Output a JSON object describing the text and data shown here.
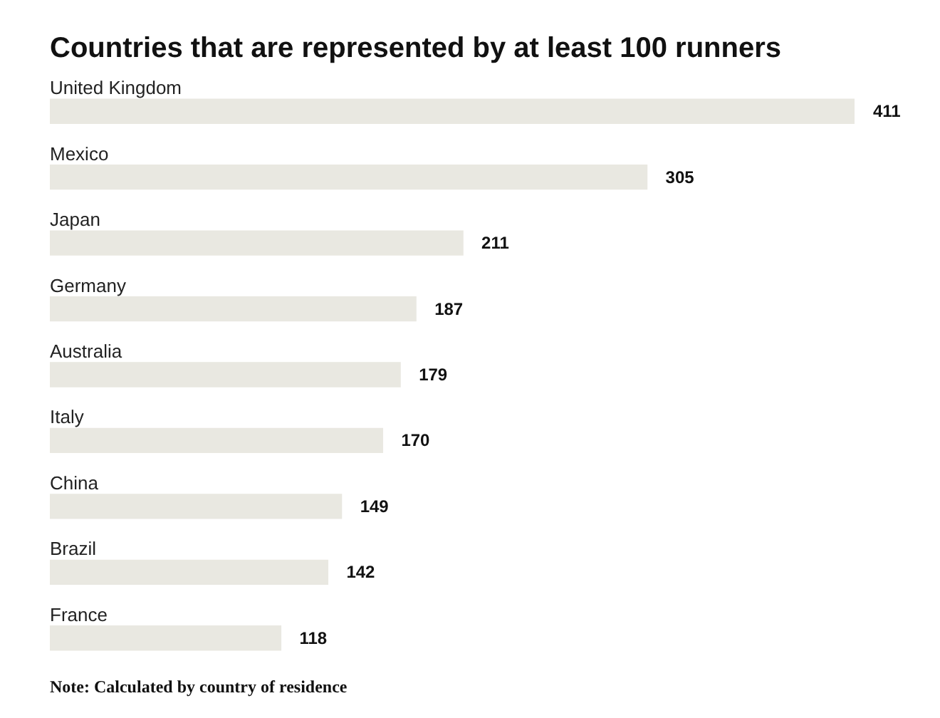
{
  "chart_data": {
    "type": "bar",
    "orientation": "horizontal",
    "title": "Countries that are represented by at least 100 runners",
    "categories": [
      "United Kingdom",
      "Mexico",
      "Japan",
      "Germany",
      "Australia",
      "Italy",
      "China",
      "Brazil",
      "France"
    ],
    "values": [
      411,
      305,
      211,
      187,
      179,
      170,
      149,
      142,
      118
    ],
    "color": "#e9e8e1",
    "data_labels": true,
    "legend": false,
    "annotations": [
      "Note: Calculated by country of residence"
    ]
  }
}
